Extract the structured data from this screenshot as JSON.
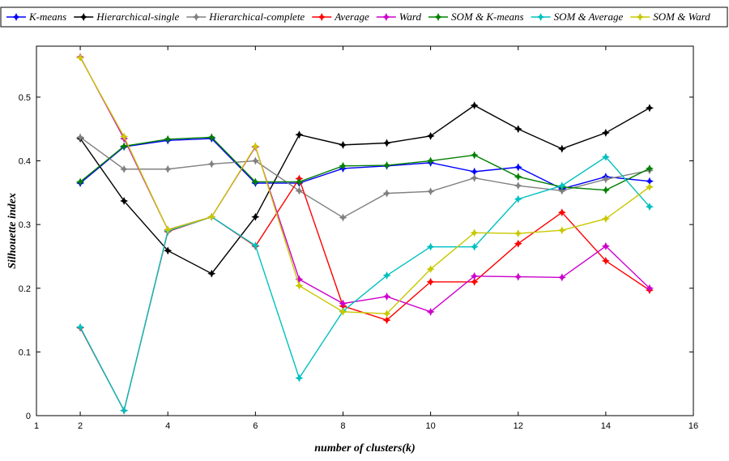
{
  "chart_data": {
    "type": "line",
    "title": "",
    "xlabel": "number of clusters(k)",
    "ylabel": "Silhouette index",
    "xlim": [
      1,
      16
    ],
    "ylim": [
      0,
      0.58
    ],
    "xticks": [
      1,
      2,
      4,
      6,
      8,
      10,
      12,
      14,
      16
    ],
    "yticks": [
      0,
      0.1,
      0.2,
      0.3,
      0.4,
      0.5
    ],
    "ytick_labels": [
      "0",
      "0.1",
      "0.2",
      "0.3",
      "0.4",
      "0.5"
    ],
    "grid": false,
    "legend_position": "top",
    "x": [
      2,
      3,
      4,
      5,
      6,
      7,
      8,
      9,
      10,
      11,
      12,
      13,
      14,
      15
    ],
    "series": [
      {
        "name": "K-means",
        "color": "#0000ff",
        "values": [
          0.365,
          0.422,
          0.432,
          0.435,
          0.365,
          0.365,
          0.388,
          0.392,
          0.397,
          0.383,
          0.39,
          0.356,
          0.375,
          0.368
        ]
      },
      {
        "name": "Hierarchical-single",
        "color": "#000000",
        "values": [
          0.435,
          0.337,
          0.259,
          0.223,
          0.312,
          0.441,
          0.425,
          0.428,
          0.439,
          0.487,
          0.45,
          0.419,
          0.444,
          0.483
        ]
      },
      {
        "name": "Hierarchical-complete",
        "color": "#808080",
        "values": [
          0.437,
          0.387,
          0.387,
          0.395,
          0.4,
          0.353,
          0.311,
          0.349,
          0.352,
          0.373,
          0.361,
          0.353,
          0.371,
          0.385
        ]
      },
      {
        "name": "Average",
        "color": "#ff0000",
        "values": [
          0.138,
          0.008,
          0.289,
          0.312,
          0.266,
          0.372,
          0.172,
          0.15,
          0.21,
          0.21,
          0.27,
          0.319,
          0.243,
          0.197
        ]
      },
      {
        "name": "Ward",
        "color": "#cc00cc",
        "values": [
          0.563,
          0.435,
          0.292,
          0.312,
          0.422,
          0.214,
          0.176,
          0.187,
          0.163,
          0.219,
          0.218,
          0.217,
          0.266,
          0.2
        ]
      },
      {
        "name": "SOM & K-means",
        "color": "#008000",
        "values": [
          0.367,
          0.423,
          0.434,
          0.437,
          0.367,
          0.367,
          0.392,
          0.393,
          0.4,
          0.409,
          0.375,
          0.359,
          0.354,
          0.388
        ]
      },
      {
        "name": "SOM & Average",
        "color": "#00c0c0",
        "values": [
          0.139,
          0.008,
          0.29,
          0.312,
          0.267,
          0.059,
          0.164,
          0.22,
          0.265,
          0.265,
          0.34,
          0.361,
          0.406,
          0.328
        ]
      },
      {
        "name": "SOM & Ward",
        "color": "#c8c800",
        "values": [
          0.562,
          0.438,
          0.292,
          0.312,
          0.423,
          0.204,
          0.163,
          0.16,
          0.23,
          0.287,
          0.286,
          0.291,
          0.309,
          0.359
        ]
      }
    ]
  }
}
